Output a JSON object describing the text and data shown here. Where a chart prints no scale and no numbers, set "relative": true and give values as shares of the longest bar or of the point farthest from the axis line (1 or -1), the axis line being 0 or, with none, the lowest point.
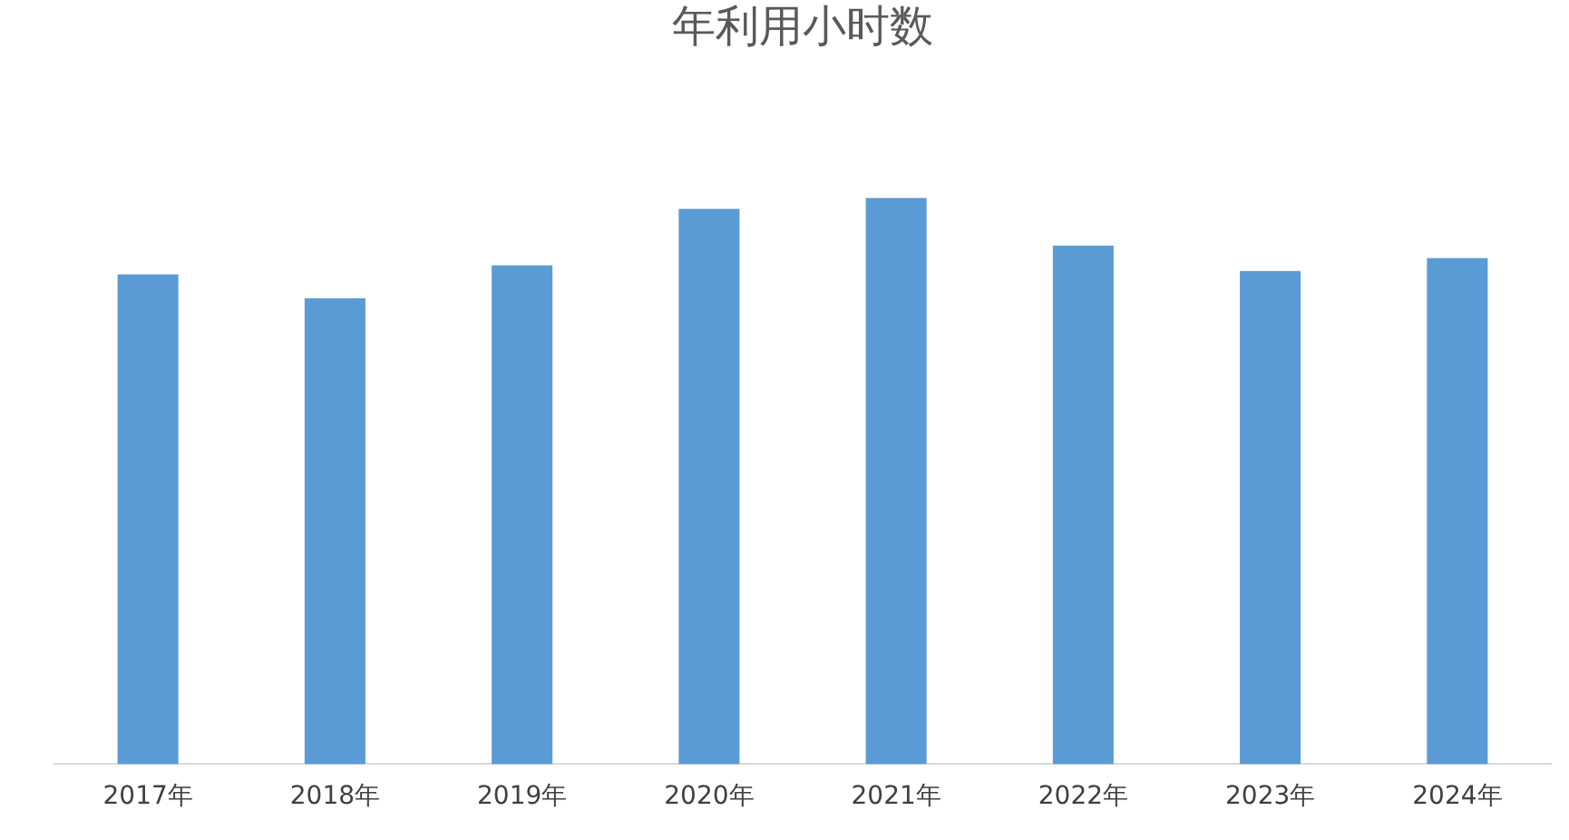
{
  "chart_data": {
    "type": "bar",
    "title": "年利用小时数",
    "categories": [
      "2017年",
      "2018年",
      "2019年",
      "2020年",
      "2021年",
      "2022年",
      "2023年",
      "2024年"
    ],
    "values": [
      0.865,
      0.823,
      0.881,
      0.981,
      1,
      0.916,
      0.871,
      0.894
    ],
    "color": "#5b9bd5",
    "relative": true,
    "grid": false,
    "legend": false
  }
}
